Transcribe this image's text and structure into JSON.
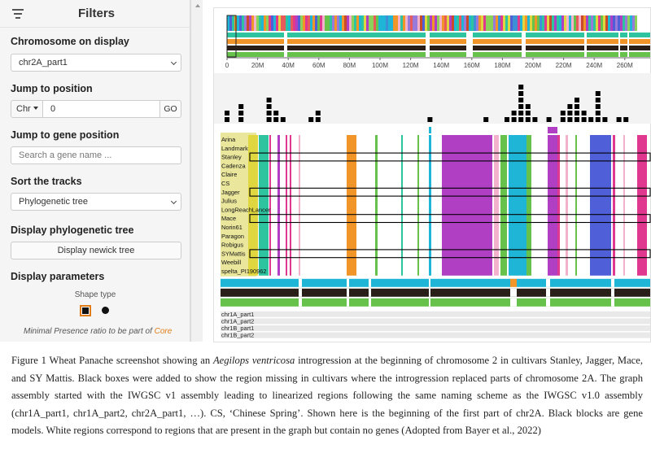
{
  "filters": {
    "title": "Filters",
    "chromosome_label": "Chromosome on display",
    "chromosome_value": "chr2A_part1",
    "jump_label": "Jump to position",
    "jump_chr": "Chr",
    "jump_value": "0",
    "go_label": "GO",
    "gene_label": "Jump to gene position",
    "gene_placeholder": "Search a gene name ...",
    "sort_label": "Sort the tracks",
    "sort_value": "Phylogenetic tree",
    "phylo_label": "Display phylogenetic tree",
    "newick_button": "Display newick tree",
    "params_label": "Display parameters",
    "shape_type_label": "Shape type",
    "min_presence_label": "Minimal Presence ratio to be part of",
    "core_label": "Core"
  },
  "axis_ticks": [
    "0",
    "20M",
    "40M",
    "60M",
    "80M",
    "100M",
    "120M",
    "140M",
    "160M",
    "180M",
    "200M",
    "220M",
    "240M",
    "260M"
  ],
  "density_heights": [
    2,
    0,
    3,
    0,
    0,
    0,
    4,
    2,
    1,
    0,
    0,
    0,
    1,
    2,
    0,
    0,
    0,
    0,
    0,
    0,
    0,
    0,
    0,
    0,
    0,
    0,
    0,
    0,
    0,
    1,
    0,
    0,
    0,
    0,
    0,
    0,
    0,
    1,
    0,
    0,
    1,
    2,
    6,
    3,
    1,
    0,
    1,
    0,
    2,
    3,
    4,
    2,
    1,
    5,
    1,
    0,
    1,
    1,
    0,
    0
  ],
  "tracks": [
    "Arina",
    "Landmark",
    "Stanley",
    "Cadenza",
    "Claire",
    "CS",
    "Jagger",
    "Julius",
    "LongReachLancer",
    "Mace",
    "Norin61",
    "Paragon",
    "Robigus",
    "SYMattis",
    "Weebill",
    "spelta_PI190962"
  ],
  "highlighted_tracks": [
    "Stanley",
    "Jagger",
    "Mace",
    "SYMattis"
  ],
  "chromosome_list": [
    "chr1A_part1",
    "chr1A_part2",
    "chr1B_part1",
    "chr1B_part2"
  ],
  "colors": {
    "core": "#e07b17",
    "yellow": "#e0d640",
    "teal": "#2ec4a0",
    "magenta": "#e0388f",
    "orange": "#f29528",
    "green": "#66c24a",
    "purple": "#b03fc4",
    "cyan": "#1fb5d6",
    "blue": "#4f5fd8",
    "pink": "#f2b2cc"
  },
  "caption": {
    "part1": "Figure 1 Wheat Panache screenshot showing an ",
    "species": "Aegilops ventricosa",
    "part2": " introgression at the beginning of chromosome 2 in cultivars Stanley, Jagger, Mace, and SY Mattis. Black boxes were added to show the region missing in cultivars where the introgression replaced parts of chromosome 2A. The graph assembly started with the IWGSC v1 assembly leading to linearized regions following the same naming scheme as the IWGSC v1.0 assembly (chr1A_part1, chr1A_part2, chr2A_part1, …). CS, ‘Chinese Spring’. Shown here is the beginning of the first part of chr2A. Black blocks are gene models. White regions correspond to regions that are present in the graph but contain no genes (Adopted from Bayer et al., 2022)"
  }
}
